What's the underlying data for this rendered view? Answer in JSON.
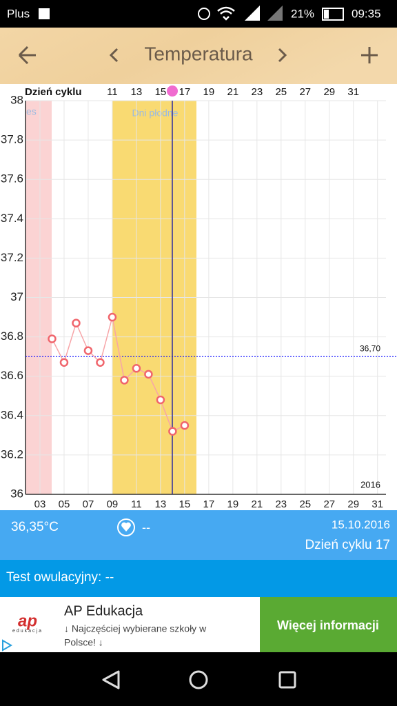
{
  "status_bar": {
    "carrier": "Plus",
    "battery": "21%",
    "time": "09:35"
  },
  "header": {
    "title": "Temperatura"
  },
  "chart_data": {
    "type": "line",
    "top_axis_label": "Dzień cyklu",
    "menstruation_label": "es",
    "fertile_label": "Dni płodne",
    "year_label": "2016",
    "x": [
      4,
      5,
      6,
      7,
      8,
      9,
      10,
      11,
      12,
      13,
      14,
      15
    ],
    "series": [
      {
        "color": "#f0656c",
        "values": [
          36.79,
          36.67,
          36.87,
          36.73,
          36.67,
          36.9,
          36.58,
          36.64,
          36.61,
          36.48,
          36.32,
          36.35
        ]
      }
    ],
    "xlim": [
      1.8,
      31.7
    ],
    "xticks": [
      {
        "value": 3,
        "label": "03"
      },
      {
        "value": 5,
        "label": "05"
      },
      {
        "value": 7,
        "label": "07"
      },
      {
        "value": 9,
        "label": "09"
      },
      11,
      13,
      15,
      17,
      19,
      21,
      23,
      25,
      27,
      29,
      31
    ],
    "x2lim": [
      3.8,
      33.7
    ],
    "x2ticks": [
      11,
      13,
      15,
      17,
      19,
      21,
      23,
      25,
      27,
      29,
      31
    ],
    "ylim": [
      36,
      38
    ],
    "yticks": [
      36,
      36.2,
      36.4,
      36.6,
      36.8,
      37,
      37.2,
      37.4,
      37.6,
      37.8,
      38
    ],
    "cover_line": {
      "value": 36.7,
      "label": "36,70"
    },
    "grid": true
  },
  "info": {
    "temperature": "36,35°C",
    "heart": "--",
    "date": "15.10.2016",
    "cycle_day": "Dzień cyklu 17"
  },
  "test": {
    "label": "Test owulacyjny: --"
  },
  "ad": {
    "logo": "ap",
    "logo_sub": "edukacja",
    "title": "AP Edukacja",
    "text_line1": "↓ Najczęściej wybierane szkoły w",
    "text_line2": "Polsce! ↓",
    "button": "Więcej informacji"
  }
}
